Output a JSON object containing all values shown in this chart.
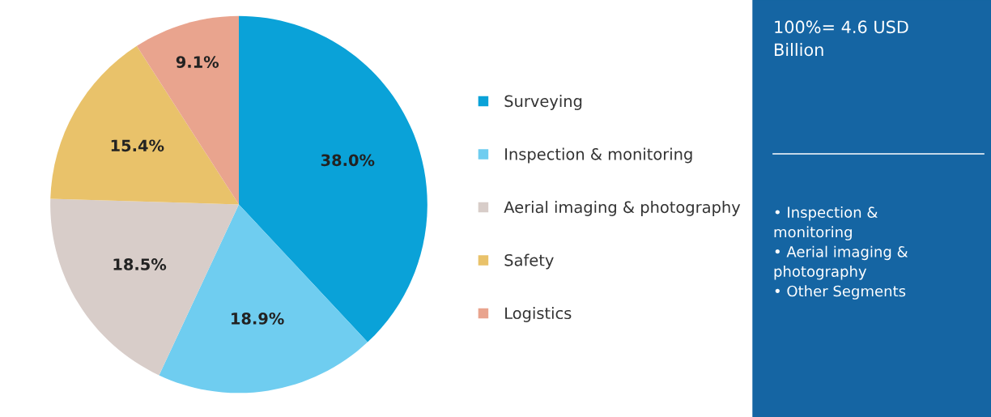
{
  "chart_data": {
    "type": "pie",
    "categories": [
      "Surveying",
      "Inspection & monitoring",
      "Aerial imaging & photography",
      "Safety",
      "Logistics"
    ],
    "values": [
      38.0,
      18.9,
      18.5,
      15.4,
      9.1
    ],
    "colors": [
      "#0aa2d8",
      "#6fcdf0",
      "#d8cdc9",
      "#e9c26a",
      "#e9a48e"
    ],
    "value_labels": [
      "38.0%",
      "18.9%",
      "18.5%",
      "15.4%",
      "9.1%"
    ],
    "legend": "right",
    "annotations": [
      "100%= 4.6 USD\nBillion",
      "• Inspection &\nmonitoring\n• Aerial imaging &\nphotography\n• Other Segments"
    ]
  }
}
